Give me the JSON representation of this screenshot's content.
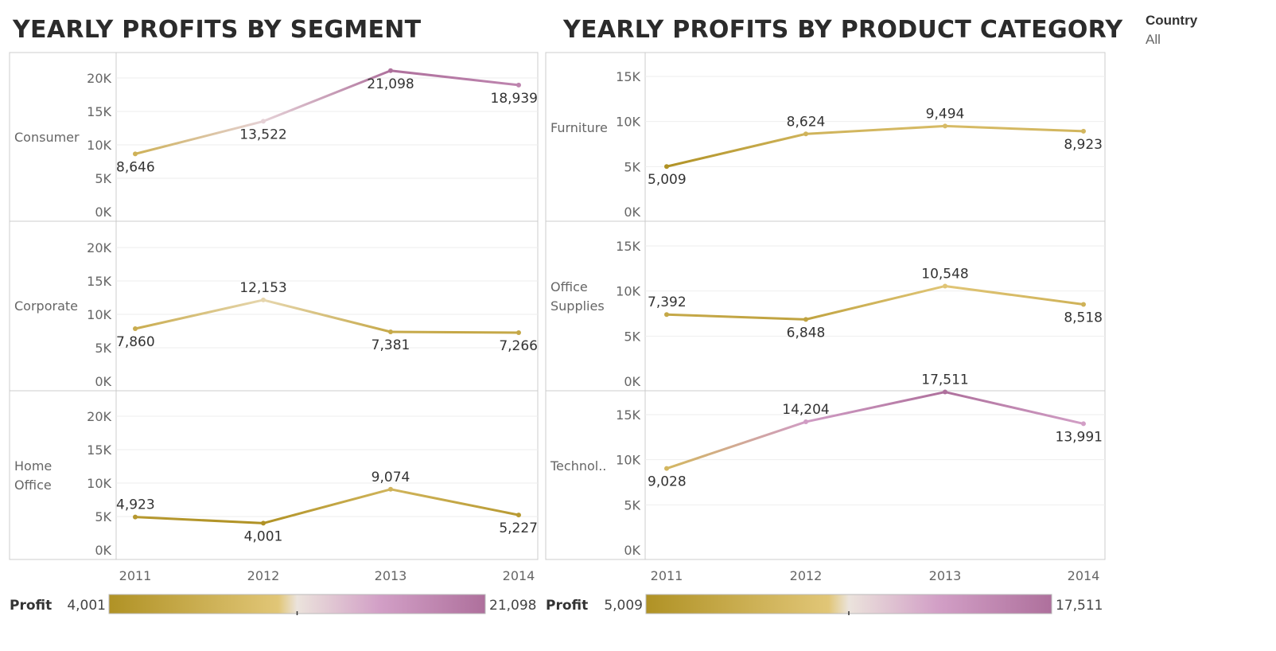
{
  "filter": {
    "label": "Country",
    "value": "All"
  },
  "colors": {
    "low": "#b09225",
    "mid_low": "#e1c677",
    "mid": "#ebe3dc",
    "mid_high": "#d29fc6",
    "high": "#ae709c",
    "grid": "#eeeeee",
    "frame": "#cccccc"
  },
  "chart_data": [
    {
      "type": "line",
      "title": "YEARLY PROFITS BY SEGMENT",
      "x": [
        "2011",
        "2012",
        "2013",
        "2014"
      ],
      "yticks": [
        "20K",
        "15K",
        "10K",
        "5K",
        "0K"
      ],
      "ylim": [
        0,
        22000
      ],
      "grid": true,
      "series": [
        {
          "name": "Consumer",
          "values": [
            8646,
            13522,
            21098,
            18939
          ],
          "labels": [
            "8,646",
            "13,522",
            "21,098",
            "18,939"
          ]
        },
        {
          "name": "Corporate",
          "values": [
            7860,
            12153,
            7381,
            7266
          ],
          "labels": [
            "7,860",
            "12,153",
            "7,381",
            "7,266"
          ]
        },
        {
          "name": "Home Office",
          "values": [
            4923,
            4001,
            9074,
            5227
          ],
          "labels": [
            "4,923",
            "4,001",
            "9,074",
            "5,227"
          ]
        }
      ],
      "legend": {
        "title": "Profit",
        "min": 4001,
        "max": 21098,
        "min_label": "4,001",
        "max_label": "21,098"
      }
    },
    {
      "type": "line",
      "title": "YEARLY PROFITS BY PRODUCT CATEGORY",
      "x": [
        "2011",
        "2012",
        "2013",
        "2014"
      ],
      "yticks": [
        "15K",
        "10K",
        "5K",
        "0K"
      ],
      "ylim": [
        0,
        19000
      ],
      "grid": true,
      "series": [
        {
          "name": "Furniture",
          "values": [
            5009,
            8624,
            9494,
            8923
          ],
          "labels": [
            "5,009",
            "8,624",
            "9,494",
            "8,923"
          ]
        },
        {
          "name": "Office Supplies",
          "values": [
            7392,
            6848,
            10548,
            8518
          ],
          "labels": [
            "7,392",
            "6,848",
            "10,548",
            "8,518"
          ]
        },
        {
          "name": "Technol..",
          "values": [
            9028,
            14204,
            17511,
            13991
          ],
          "labels": [
            "9,028",
            "14,204",
            "17,511",
            "13,991"
          ]
        }
      ],
      "legend": {
        "title": "Profit",
        "min": 5009,
        "max": 17511,
        "min_label": "5,009",
        "max_label": "17,511"
      }
    }
  ]
}
